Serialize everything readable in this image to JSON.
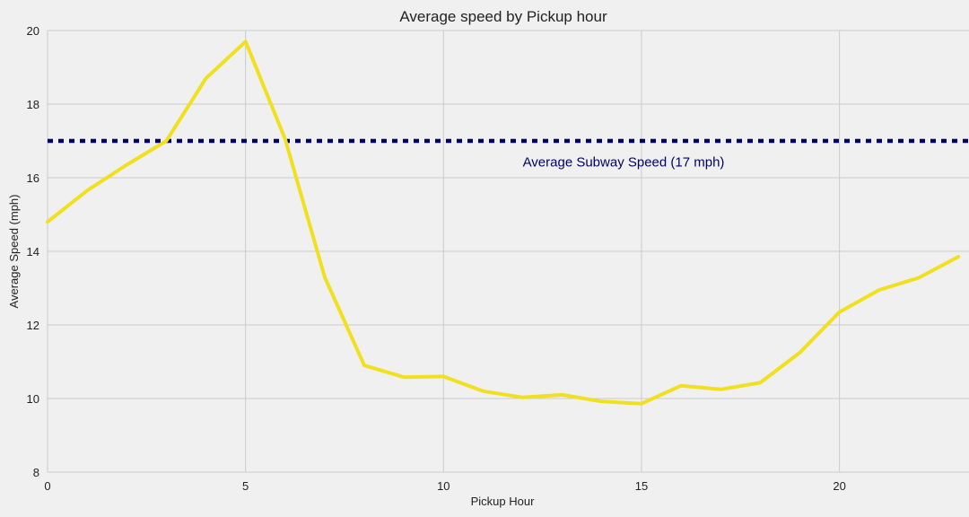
{
  "chart_data": {
    "type": "line",
    "title": "Average speed by Pickup hour",
    "xlabel": "Pickup Hour",
    "ylabel": "Average Speed (mph)",
    "xlim": [
      0,
      23
    ],
    "ylim": [
      8,
      20
    ],
    "xticks": [
      "0",
      "5",
      "10",
      "15",
      "20"
    ],
    "yticks": [
      "8",
      "10",
      "12",
      "14",
      "16",
      "18",
      "20"
    ],
    "grid": true,
    "series": [
      {
        "x": [
          0,
          1,
          2,
          3,
          4,
          5,
          6,
          7,
          8,
          9,
          10,
          11,
          12,
          13,
          14,
          15,
          16,
          17,
          18,
          19,
          20,
          21,
          22,
          23
        ],
        "values": [
          14.8,
          15.65,
          16.35,
          17.0,
          18.7,
          19.7,
          17.05,
          13.3,
          10.9,
          10.58,
          10.6,
          10.2,
          10.03,
          10.1,
          9.92,
          9.86,
          10.35,
          10.25,
          10.43,
          11.25,
          12.35,
          12.95,
          13.28,
          13.85
        ],
        "color": "#f0e020"
      }
    ],
    "reference_line": {
      "y": 17,
      "label": "Average Subway Speed (17 mph)",
      "color": "#000066",
      "label_position": [
        12,
        16.3
      ]
    }
  }
}
